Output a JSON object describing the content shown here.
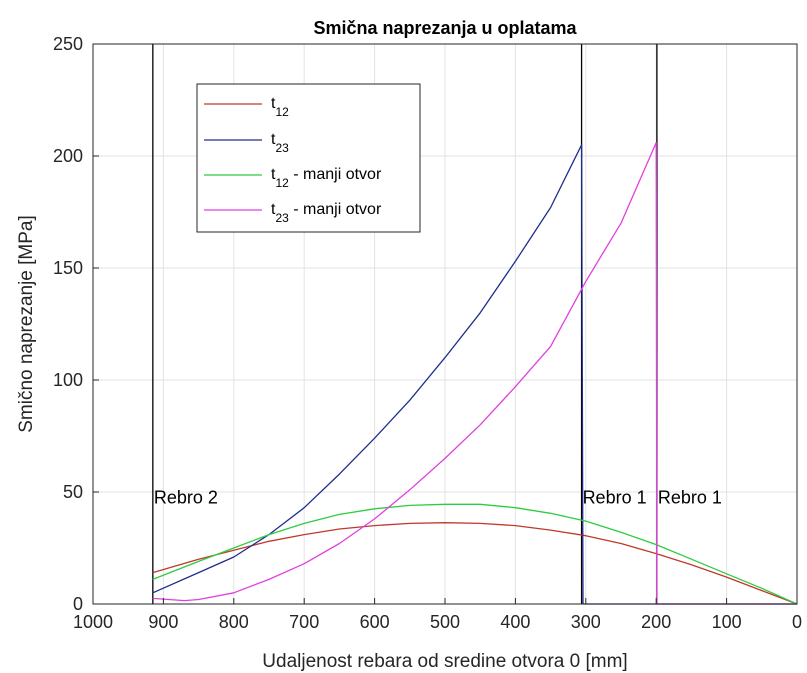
{
  "chart_data": {
    "type": "line",
    "title": "Smična naprezanja u oplatama",
    "xlabel": "Udaljenost rebara od sredine otvora 0 [mm]",
    "ylabel": "Smično naprezanje [MPa]",
    "xlim": [
      1000,
      0
    ],
    "ylim": [
      0,
      250
    ],
    "x_reversed": true,
    "grid": true,
    "legend_position": "top-left",
    "xticks": [
      1000,
      900,
      800,
      700,
      600,
      500,
      400,
      300,
      200,
      100,
      0
    ],
    "xtick_labels": [
      "1000",
      "900",
      "800",
      "700",
      "600",
      "500",
      "400",
      "300",
      "200",
      "100",
      "0"
    ],
    "yticks": [
      0,
      50,
      100,
      150,
      200,
      250
    ],
    "ytick_labels": [
      "0",
      "50",
      "100",
      "150",
      "200",
      "250"
    ],
    "series": [
      {
        "name": "t12",
        "legend_base": "t",
        "legend_sub": "12",
        "legend_suffix": "",
        "color": "#c0392b",
        "x": [
          915,
          850,
          800,
          750,
          700,
          650,
          600,
          550,
          500,
          450,
          400,
          350,
          300,
          250,
          200,
          150,
          100,
          50,
          0
        ],
        "y": [
          14,
          20,
          24,
          28,
          31,
          33.5,
          35,
          36,
          36.3,
          36,
          35,
          33,
          30.5,
          27,
          22.5,
          17.5,
          12,
          6,
          0
        ]
      },
      {
        "name": "t23",
        "legend_base": "t",
        "legend_sub": "23",
        "legend_suffix": "",
        "color": "#1f2e8c",
        "x": [
          915,
          850,
          800,
          750,
          700,
          650,
          600,
          550,
          500,
          450,
          400,
          350,
          306,
          304,
          300,
          250,
          200,
          150,
          100,
          50,
          0
        ],
        "y": [
          5,
          14,
          21,
          31,
          43,
          58,
          74,
          91,
          110,
          130,
          153,
          177,
          205,
          0,
          0,
          0,
          0,
          0,
          0,
          0,
          0
        ]
      },
      {
        "name": "t12 - manji otvor",
        "legend_base": "t",
        "legend_sub": "12",
        "legend_suffix": " - manji otvor",
        "color": "#2ecc40",
        "x": [
          915,
          850,
          800,
          750,
          700,
          650,
          600,
          550,
          500,
          450,
          400,
          350,
          300,
          250,
          200,
          150,
          100,
          50,
          0
        ],
        "y": [
          11,
          19,
          25,
          31,
          36,
          40,
          42.5,
          44,
          44.5,
          44.5,
          43,
          40.5,
          37,
          32,
          26.5,
          20,
          13.5,
          7,
          0
        ]
      },
      {
        "name": "t23 - manji otvor",
        "legend_base": "t",
        "legend_sub": "23",
        "legend_suffix": " - manji otvor",
        "color": "#e040e0",
        "x": [
          915,
          870,
          850,
          800,
          750,
          700,
          650,
          600,
          550,
          500,
          450,
          400,
          350,
          300,
          250,
          200,
          199,
          150,
          100,
          50,
          0
        ],
        "y": [
          2.5,
          1.5,
          2,
          5,
          11,
          18,
          27,
          38,
          51,
          65,
          80,
          97,
          115,
          144,
          170,
          206,
          0,
          0,
          0,
          0,
          0
        ]
      }
    ],
    "vertical_lines": [
      {
        "x": 915,
        "label": "Rebro 2",
        "label_y": 48
      },
      {
        "x": 306,
        "label": "Rebro 1",
        "label_y": 48
      },
      {
        "x": 199,
        "label": "Rebro 1",
        "label_y": 48
      }
    ]
  }
}
